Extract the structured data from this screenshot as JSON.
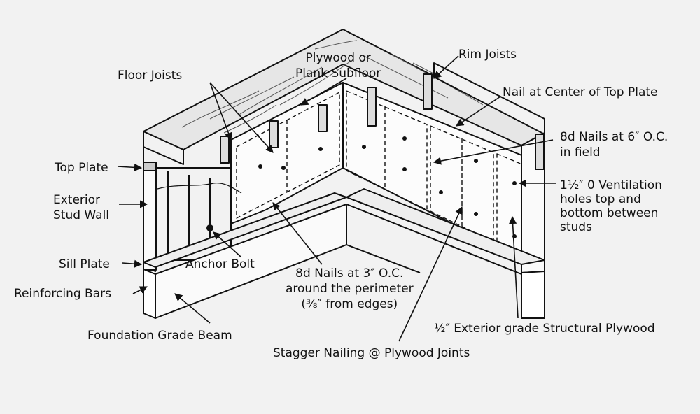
{
  "labels": {
    "plywood_subfloor_line1": "Plywood or",
    "plywood_subfloor_line2": "Plank Subfloor",
    "rim_joists": "Rim Joists",
    "floor_joists": "Floor Joists",
    "nail_center_top_plate": "Nail at Center of Top Plate",
    "nails_6_line1": "8d Nails at 6″ O.C.",
    "nails_6_line2": "in field",
    "top_plate": "Top Plate",
    "exterior_stud_wall_line1": "Exterior",
    "exterior_stud_wall_line2": "Stud Wall",
    "ventilation_line1": "1½″ 0 Ventilation",
    "ventilation_line2": "holes top and",
    "ventilation_line3": "bottom between",
    "ventilation_line4": "studs",
    "sill_plate": "Sill Plate",
    "anchor_bolt": "Anchor Bolt",
    "nails_3_line1": "8d Nails at 3″ O.C.",
    "nails_3_line2": "around the perimeter",
    "nails_3_line3": "(⅜″ from edges)",
    "reinforcing_bars": "Reinforcing Bars",
    "exterior_plywood": "½″ Exterior grade Structural Plywood",
    "foundation_grade_beam": "Foundation Grade Beam",
    "stagger_nailing": "Stagger Nailing @ Plywood Joints"
  }
}
